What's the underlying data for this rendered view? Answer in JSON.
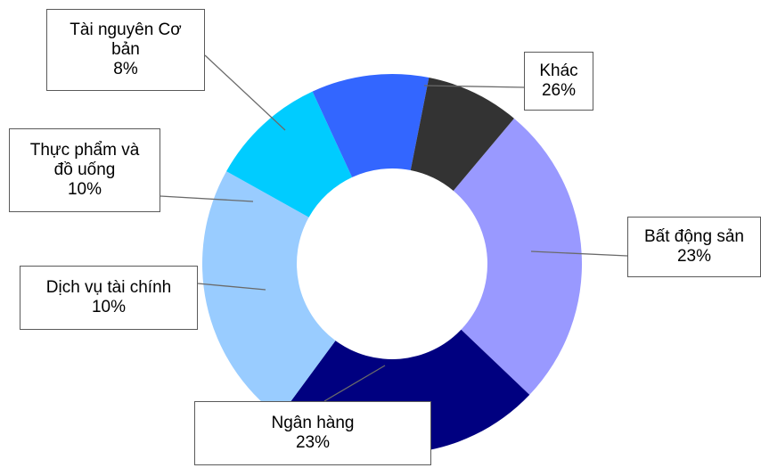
{
  "chart_data": {
    "type": "pie",
    "style": "donut",
    "slices": [
      {
        "label": "Khác",
        "value": 26,
        "value_label": "26%",
        "color": "#9999ff"
      },
      {
        "label": "Bất động sản",
        "value": 23,
        "value_label": "23%",
        "color": "#000080"
      },
      {
        "label": "Ngân hàng",
        "value": 23,
        "value_label": "23%",
        "color": "#99ccff"
      },
      {
        "label": "Dịch vụ tài chính",
        "value": 10,
        "value_label": "10%",
        "color": "#00ccff"
      },
      {
        "label": "Thực phẩm và\nđồ uống",
        "value": 10,
        "value_label": "10%",
        "color": "#3366ff"
      },
      {
        "label": "Tài nguyên Cơ\nbản",
        "value": 8,
        "value_label": "8%",
        "color": "#333333"
      }
    ],
    "legend": "none",
    "labels": "callout boxes with leader lines"
  }
}
